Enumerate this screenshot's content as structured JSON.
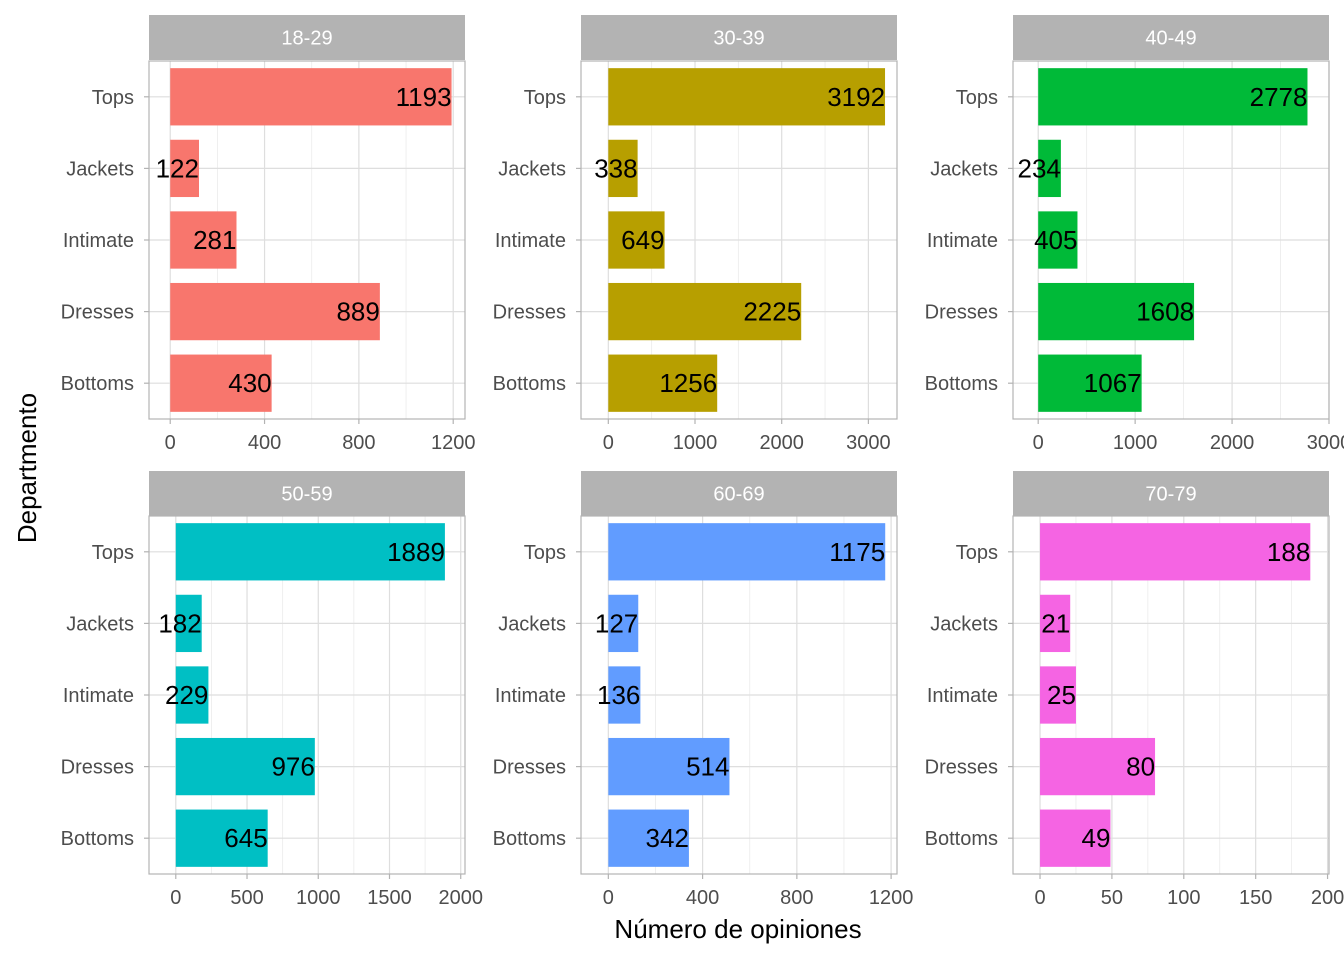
{
  "chart_data": {
    "type": "bar",
    "orientation": "horizontal",
    "facet_layout": "3 columns x 2 rows, free x scales",
    "xlabel": "Número de opiniones",
    "ylabel": "Departmento",
    "categories": [
      "Bottoms",
      "Dresses",
      "Intimate",
      "Jackets",
      "Tops"
    ],
    "grid": true,
    "legend": "none",
    "facets": [
      {
        "strip": "18-29",
        "color": "#F8766D",
        "values": [
          430,
          889,
          281,
          122,
          1193
        ],
        "value_labels": [
          "430",
          "889",
          "281",
          "122",
          "1193"
        ],
        "xlim": [
          -90,
          1250
        ],
        "ticks": [
          0,
          400,
          800,
          1200
        ],
        "tick_labels": [
          "0",
          "400",
          "800",
          "1200"
        ]
      },
      {
        "strip": "30-39",
        "color": "#B79F00",
        "values": [
          1256,
          2225,
          649,
          338,
          3192
        ],
        "value_labels": [
          "1256",
          "2225",
          "649",
          "338",
          "3192"
        ],
        "xlim": [
          -315,
          3330
        ],
        "ticks": [
          0,
          1000,
          2000,
          3000
        ],
        "tick_labels": [
          "0",
          "1000",
          "2000",
          "3000"
        ]
      },
      {
        "strip": "40-49",
        "color": "#00BA38",
        "values": [
          1067,
          1608,
          405,
          234,
          2778
        ],
        "value_labels": [
          "1067",
          "1608",
          "405",
          "234",
          "2778"
        ],
        "xlim": [
          -260,
          3000
        ],
        "ticks": [
          0,
          1000,
          2000,
          3000
        ],
        "tick_labels": [
          "0",
          "1000",
          "2000",
          "3000"
        ]
      },
      {
        "strip": "50-59",
        "color": "#00BFC4",
        "values": [
          645,
          976,
          229,
          182,
          1889
        ],
        "value_labels": [
          "645",
          "976",
          "229",
          "182",
          "1889"
        ],
        "xlim": [
          -188,
          2030
        ],
        "ticks": [
          0,
          500,
          1000,
          1500,
          2000
        ],
        "tick_labels": [
          "0",
          "500",
          "1000",
          "1500",
          "2000"
        ]
      },
      {
        "strip": "60-69",
        "color": "#619CFF",
        "values": [
          342,
          514,
          136,
          127,
          1175
        ],
        "value_labels": [
          "342",
          "514",
          "136",
          "127",
          "1175"
        ],
        "xlim": [
          -116,
          1225
        ],
        "ticks": [
          0,
          400,
          800,
          1200
        ],
        "tick_labels": [
          "0",
          "400",
          "800",
          "1200"
        ]
      },
      {
        "strip": "70-79",
        "color": "#F564E3",
        "values": [
          49,
          80,
          25,
          21,
          188
        ],
        "value_labels": [
          "49",
          "80",
          "25",
          "21",
          "188"
        ],
        "xlim": [
          -18.8,
          201
        ],
        "ticks": [
          0,
          50,
          100,
          150,
          200
        ],
        "tick_labels": [
          "0",
          "50",
          "100",
          "150",
          "200"
        ]
      }
    ]
  }
}
